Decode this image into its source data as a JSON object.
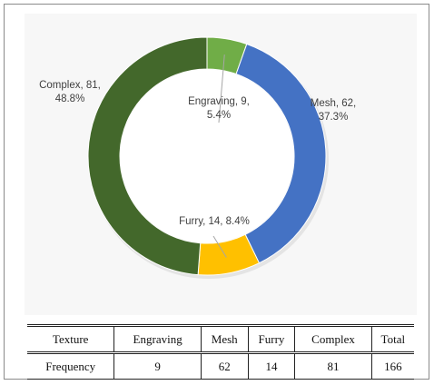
{
  "chart_data": {
    "type": "pie",
    "variant": "donut",
    "title": "",
    "legend": "none",
    "series": [
      {
        "name": "Engraving",
        "value": 9,
        "percent": "5.4%",
        "color": "#70ad47",
        "label": "Engraving, 9,\n5.4%"
      },
      {
        "name": "Mesh",
        "value": 62,
        "percent": "37.3%",
        "color": "#4472c4",
        "label": "Mesh, 62,\n37.3%"
      },
      {
        "name": "Furry",
        "value": 14,
        "percent": "8.4%",
        "color": "#ffc000",
        "label": "Furry, 14, 8.4%"
      },
      {
        "name": "Complex",
        "value": 81,
        "percent": "48.8%",
        "color": "#43682b",
        "label": "Complex, 81,\n48.8%"
      }
    ]
  },
  "table": {
    "headers": [
      "Texture",
      "Engraving",
      "Mesh",
      "Furry",
      "Complex",
      "Total"
    ],
    "row": [
      "Frequency",
      "9",
      "62",
      "14",
      "81",
      "166"
    ]
  }
}
